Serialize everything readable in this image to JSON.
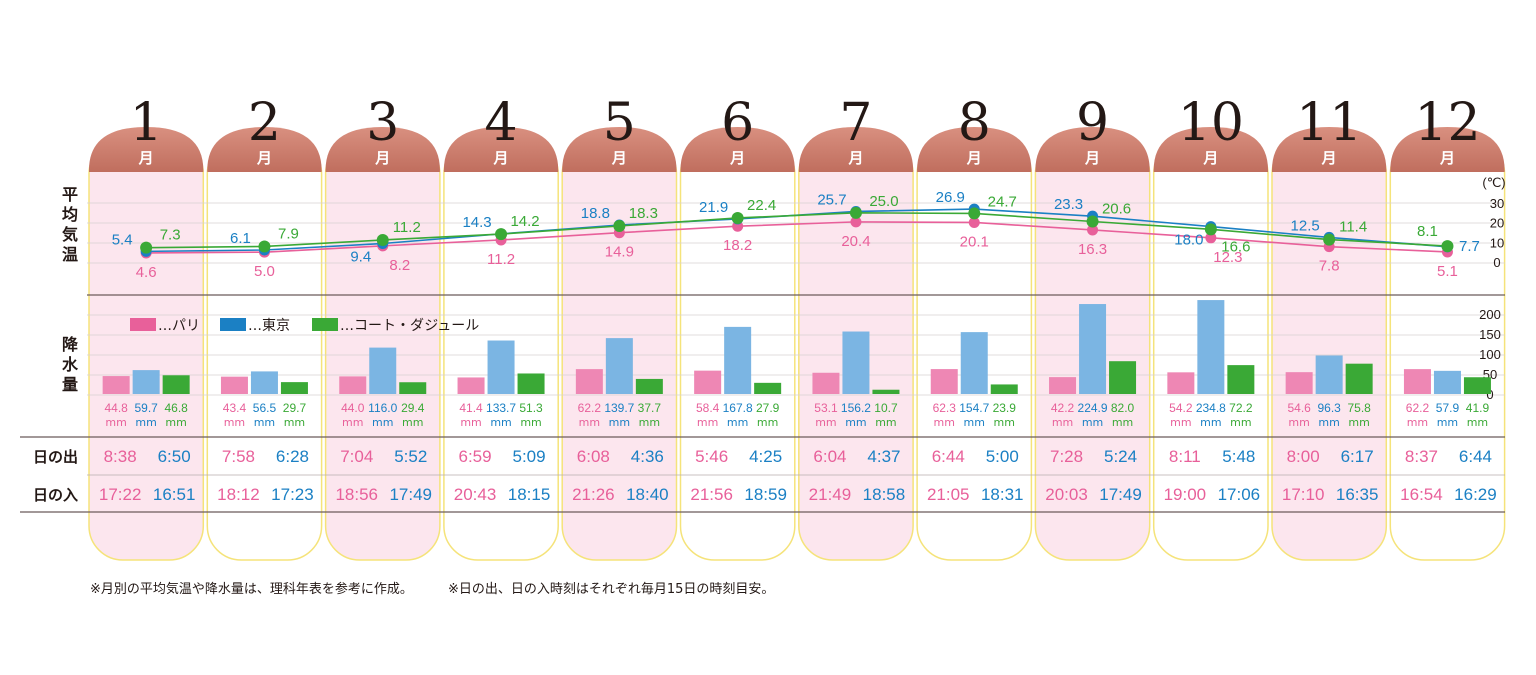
{
  "chart_data": {
    "type": "table",
    "months": [
      "1",
      "2",
      "3",
      "4",
      "5",
      "6",
      "7",
      "8",
      "9",
      "10",
      "11",
      "12"
    ],
    "month_unit": "月",
    "temperature": {
      "label": "平均気温",
      "unit": "(℃)",
      "ticks": [
        30,
        20,
        10,
        0
      ],
      "ylim": [
        0,
        30
      ],
      "series": [
        {
          "name": "パリ",
          "color": "#e8609a",
          "values": [
            4.6,
            5.0,
            8.2,
            11.2,
            14.9,
            18.2,
            20.4,
            20.1,
            16.3,
            12.3,
            7.8,
            5.1
          ]
        },
        {
          "name": "東京",
          "color": "#1b80c4",
          "values": [
            5.4,
            6.1,
            9.4,
            14.3,
            18.8,
            21.9,
            25.7,
            26.9,
            23.3,
            18.0,
            12.5,
            7.7
          ]
        },
        {
          "name": "コート・ダジュール",
          "color": "#3aa936",
          "values": [
            7.3,
            7.9,
            11.2,
            14.2,
            18.3,
            22.4,
            25.0,
            24.7,
            20.6,
            16.6,
            11.4,
            8.1
          ]
        }
      ]
    },
    "precipitation": {
      "label": "降水量",
      "unit": "mm",
      "ticks": [
        200,
        150,
        100,
        50,
        0
      ],
      "ylim": [
        0,
        200
      ],
      "series": [
        {
          "name": "パリ",
          "color": "#ee87b4",
          "values": [
            44.8,
            43.4,
            44.0,
            41.4,
            62.2,
            58.4,
            53.1,
            62.3,
            42.2,
            54.2,
            54.6,
            62.2
          ]
        },
        {
          "name": "東京",
          "color": "#7bb5e3",
          "values": [
            59.7,
            56.5,
            116.0,
            133.7,
            139.7,
            167.8,
            156.2,
            154.7,
            224.9,
            234.8,
            96.3,
            57.9
          ]
        },
        {
          "name": "コート・ダジュール",
          "color": "#3aa936",
          "values": [
            46.8,
            29.7,
            29.4,
            51.3,
            37.7,
            27.9,
            10.7,
            23.9,
            82.0,
            72.2,
            75.8,
            41.9
          ]
        }
      ]
    },
    "legend": [
      "…パリ",
      "…東京",
      "…コート・ダジュール"
    ],
    "sunrise": {
      "label": "日の出",
      "paris": [
        "8:38",
        "7:58",
        "7:04",
        "6:59",
        "6:08",
        "5:46",
        "6:04",
        "6:44",
        "7:28",
        "8:11",
        "8:00",
        "8:37"
      ],
      "tokyo": [
        "6:50",
        "6:28",
        "5:52",
        "5:09",
        "4:36",
        "4:25",
        "4:37",
        "5:00",
        "5:24",
        "5:48",
        "6:17",
        "6:44"
      ]
    },
    "sunset": {
      "label": "日の入",
      "paris": [
        "17:22",
        "18:12",
        "18:56",
        "20:43",
        "21:26",
        "21:56",
        "21:49",
        "21:05",
        "20:03",
        "19:00",
        "17:10",
        "16:54"
      ],
      "tokyo": [
        "16:51",
        "17:23",
        "17:49",
        "18:15",
        "18:40",
        "18:59",
        "18:58",
        "18:31",
        "17:49",
        "17:06",
        "16:35",
        "16:29"
      ]
    },
    "colors": {
      "paris": "#e8609a",
      "tokyo": "#1b80c4",
      "cote": "#3aa936",
      "header": "#c97a6a",
      "pink_bg": "#fce6ee",
      "column_border": "#f5e37a"
    }
  },
  "footnotes": {
    "note1": "※月別の平均気温や降水量は、理科年表を参考に作成。",
    "note2": "※日の出、日の入時刻はそれぞれ毎月15日の時刻目安。"
  }
}
